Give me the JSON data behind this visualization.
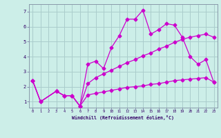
{
  "bg_color": "#cceee8",
  "grid_color": "#aacccc",
  "line_color": "#cc00cc",
  "xlim": [
    -0.5,
    23.5
  ],
  "ylim": [
    0.6,
    7.5
  ],
  "xticks": [
    0,
    1,
    2,
    3,
    4,
    5,
    6,
    7,
    8,
    9,
    10,
    11,
    12,
    13,
    14,
    15,
    16,
    17,
    18,
    19,
    20,
    21,
    22,
    23
  ],
  "yticks": [
    1,
    2,
    3,
    4,
    5,
    6,
    7
  ],
  "xlabel": "Windchill (Refroidissement éolien,°C)",
  "curve1_x": [
    0,
    1,
    3,
    4,
    5,
    6,
    7,
    8,
    9,
    10,
    11,
    12,
    13,
    14,
    15,
    16,
    17,
    18,
    19,
    20,
    21,
    22,
    23
  ],
  "curve1_y": [
    2.4,
    1.0,
    1.7,
    1.4,
    1.4,
    0.7,
    3.5,
    3.7,
    3.2,
    4.6,
    5.4,
    6.5,
    6.5,
    7.1,
    5.5,
    5.8,
    6.2,
    6.1,
    5.3,
    4.0,
    3.5,
    3.8,
    2.3
  ],
  "curve2_x": [
    0,
    1,
    3,
    4,
    5,
    6,
    7,
    8,
    9,
    10,
    11,
    12,
    13,
    14,
    15,
    16,
    17,
    18,
    19,
    20,
    21,
    22,
    23
  ],
  "curve2_y": [
    2.4,
    1.0,
    1.7,
    1.4,
    1.4,
    0.7,
    2.2,
    2.6,
    2.85,
    3.1,
    3.35,
    3.6,
    3.8,
    4.05,
    4.25,
    4.5,
    4.7,
    4.95,
    5.15,
    5.3,
    5.4,
    5.5,
    5.3
  ],
  "curve3_x": [
    0,
    1,
    3,
    4,
    5,
    6,
    7,
    8,
    9,
    10,
    11,
    12,
    13,
    14,
    15,
    16,
    17,
    18,
    19,
    20,
    21,
    22,
    23
  ],
  "curve3_y": [
    2.4,
    1.0,
    1.7,
    1.4,
    1.4,
    0.7,
    1.45,
    1.55,
    1.65,
    1.75,
    1.85,
    1.95,
    2.0,
    2.05,
    2.15,
    2.2,
    2.3,
    2.4,
    2.45,
    2.5,
    2.55,
    2.6,
    2.3
  ]
}
